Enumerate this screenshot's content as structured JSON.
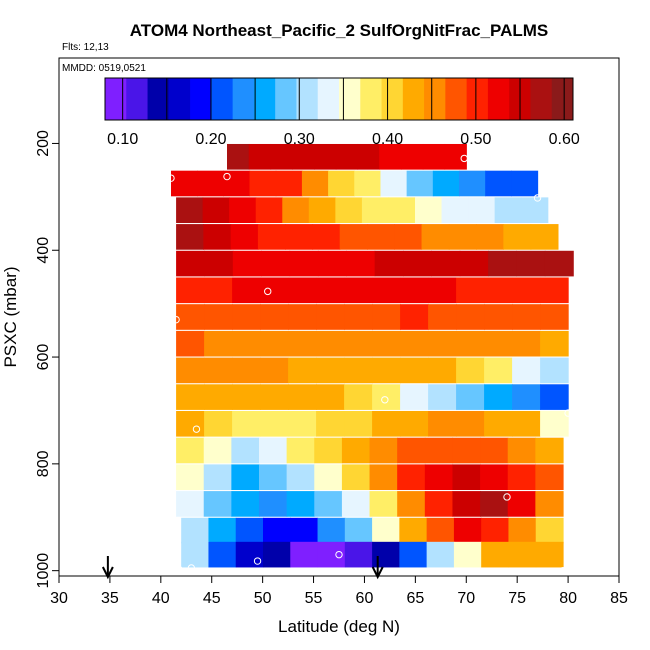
{
  "chart_data": {
    "type": "heatmap",
    "title": "ATOM4 Northeast_Pacific_2 SulfOrgNitFrac_PALMS",
    "flights_label": "Flts: 12,13",
    "dates_label": "MMDD: 0519,0521",
    "xlabel": "Latitude (deg N)",
    "ylabel": "PSXC (mbar)",
    "xlim": [
      30,
      85
    ],
    "ylim": [
      1010,
      40
    ],
    "y_reversed": true,
    "xticks": [
      "30",
      "35",
      "40",
      "45",
      "50",
      "55",
      "60",
      "65",
      "70",
      "75",
      "80",
      "85"
    ],
    "yticks": [
      "200",
      "400",
      "600",
      "800",
      "1000"
    ],
    "colorbar": {
      "range": [
        0.08,
        0.61
      ],
      "ticks": [
        "0.10",
        "0.20",
        "0.30",
        "0.40",
        "0.50",
        "0.60"
      ],
      "colors": [
        "#7f1fff",
        "#4a15e8",
        "#0000aa",
        "#0000cc",
        "#0000ff",
        "#0055ff",
        "#1f8fff",
        "#00aaff",
        "#66c6ff",
        "#b2e2ff",
        "#e6f5ff",
        "#ffffcc",
        "#ffee66",
        "#ffd633",
        "#ffaa00",
        "#ff8c00",
        "#ff5500",
        "#ff2200",
        "#ee0000",
        "#cc0000",
        "#aa1111",
        "#8b1a1a"
      ]
    },
    "layers": [
      {
        "p": 225,
        "x0": 46.5,
        "x1": 70.0,
        "values": [
          0.57,
          0.56,
          0.56,
          0.55,
          0.55,
          0.54,
          0.54,
          0.53,
          0.53,
          0.52,
          0.52
        ]
      },
      {
        "p": 275,
        "x0": 41.0,
        "x1": 77.0,
        "values": [
          0.53,
          0.52,
          0.52,
          0.51,
          0.49,
          0.45,
          0.41,
          0.37,
          0.33,
          0.29,
          0.26,
          0.23,
          0.22,
          0.21
        ]
      },
      {
        "p": 325,
        "x0": 41.5,
        "x1": 78.0,
        "values": [
          0.57,
          0.55,
          0.52,
          0.49,
          0.45,
          0.42,
          0.4,
          0.39,
          0.37,
          0.36,
          0.34,
          0.33,
          0.31,
          0.3
        ]
      },
      {
        "p": 375,
        "x0": 41.5,
        "x1": 79.0,
        "values": [
          0.57,
          0.56,
          0.53,
          0.51,
          0.5,
          0.49,
          0.48,
          0.47,
          0.47,
          0.46,
          0.45,
          0.45,
          0.44,
          0.43
        ]
      },
      {
        "p": 425,
        "x0": 41.5,
        "x1": 80.5,
        "values": [
          0.55,
          0.54,
          0.53,
          0.52,
          0.52,
          0.53,
          0.53,
          0.54,
          0.54,
          0.55,
          0.56,
          0.57,
          0.57,
          0.58
        ]
      },
      {
        "p": 475,
        "x0": 41.5,
        "x1": 80.0,
        "values": [
          0.5,
          0.51,
          0.52,
          0.52,
          0.52,
          0.52,
          0.53,
          0.53,
          0.52,
          0.52,
          0.51,
          0.5,
          0.5,
          0.49
        ]
      },
      {
        "p": 525,
        "x0": 41.5,
        "x1": 80.0,
        "values": [
          0.48,
          0.48,
          0.48,
          0.48,
          0.48,
          0.48,
          0.48,
          0.48,
          0.49,
          0.48,
          0.48,
          0.47,
          0.47,
          0.47
        ]
      },
      {
        "p": 575,
        "x0": 41.5,
        "x1": 80.0,
        "values": [
          0.47,
          0.46,
          0.46,
          0.46,
          0.46,
          0.46,
          0.46,
          0.46,
          0.46,
          0.46,
          0.46,
          0.45,
          0.45,
          0.44
        ]
      },
      {
        "p": 625,
        "x0": 41.5,
        "x1": 80.0,
        "values": [
          0.45,
          0.45,
          0.45,
          0.45,
          0.44,
          0.44,
          0.44,
          0.43,
          0.43,
          0.42,
          0.4,
          0.37,
          0.34,
          0.32
        ]
      },
      {
        "p": 675,
        "x0": 41.5,
        "x1": 80.0,
        "values": [
          0.43,
          0.42,
          0.42,
          0.43,
          0.43,
          0.42,
          0.4,
          0.37,
          0.34,
          0.32,
          0.29,
          0.26,
          0.24,
          0.22
        ]
      },
      {
        "p": 725,
        "x0": 41.5,
        "x1": 80.0,
        "values": [
          0.42,
          0.4,
          0.38,
          0.37,
          0.38,
          0.4,
          0.41,
          0.43,
          0.44,
          0.45,
          0.45,
          0.44,
          0.42,
          0.36
        ]
      },
      {
        "p": 775,
        "x0": 41.5,
        "x1": 79.5,
        "values": [
          0.38,
          0.35,
          0.32,
          0.33,
          0.37,
          0.41,
          0.44,
          0.46,
          0.47,
          0.48,
          0.48,
          0.47,
          0.46,
          0.44
        ]
      },
      {
        "p": 825,
        "x0": 41.5,
        "x1": 79.5,
        "values": [
          0.35,
          0.3,
          0.27,
          0.28,
          0.32,
          0.36,
          0.41,
          0.46,
          0.5,
          0.53,
          0.55,
          0.53,
          0.5,
          0.47
        ]
      },
      {
        "p": 875,
        "x0": 41.5,
        "x1": 79.5,
        "values": [
          0.33,
          0.29,
          0.26,
          0.24,
          0.25,
          0.28,
          0.33,
          0.39,
          0.45,
          0.51,
          0.55,
          0.58,
          0.52,
          0.45
        ]
      },
      {
        "p": 925,
        "x0": 42.0,
        "x1": 79.5,
        "values": [
          0.3,
          0.25,
          0.21,
          0.19,
          0.2,
          0.23,
          0.29,
          0.35,
          0.42,
          0.47,
          0.52,
          0.5,
          0.45,
          0.4
        ]
      },
      {
        "p": 970,
        "x0": 42.0,
        "x1": 79.5,
        "values": [
          0.32,
          0.22,
          0.16,
          0.13,
          0.09,
          0.09,
          0.11,
          0.14,
          0.22,
          0.3,
          0.36,
          0.42,
          0.44,
          0.42
        ]
      }
    ],
    "points": [
      {
        "x": 69.8,
        "p": 228
      },
      {
        "x": 46.5,
        "p": 262
      },
      {
        "x": 41.0,
        "p": 265
      },
      {
        "x": 77.0,
        "p": 302
      },
      {
        "x": 80.5,
        "p": 458
      },
      {
        "x": 50.5,
        "p": 477
      },
      {
        "x": 41.5,
        "p": 530
      },
      {
        "x": 62.0,
        "p": 680
      },
      {
        "x": 80.0,
        "p": 705
      },
      {
        "x": 43.5,
        "p": 735
      },
      {
        "x": 74.0,
        "p": 862
      },
      {
        "x": 57.5,
        "p": 970
      },
      {
        "x": 49.5,
        "p": 982
      },
      {
        "x": 43.0,
        "p": 995
      },
      {
        "x": 41.8,
        "p": 998
      },
      {
        "x": 79.5,
        "p": 1000
      }
    ],
    "arrows_x": [
      34.8,
      61.3
    ]
  }
}
